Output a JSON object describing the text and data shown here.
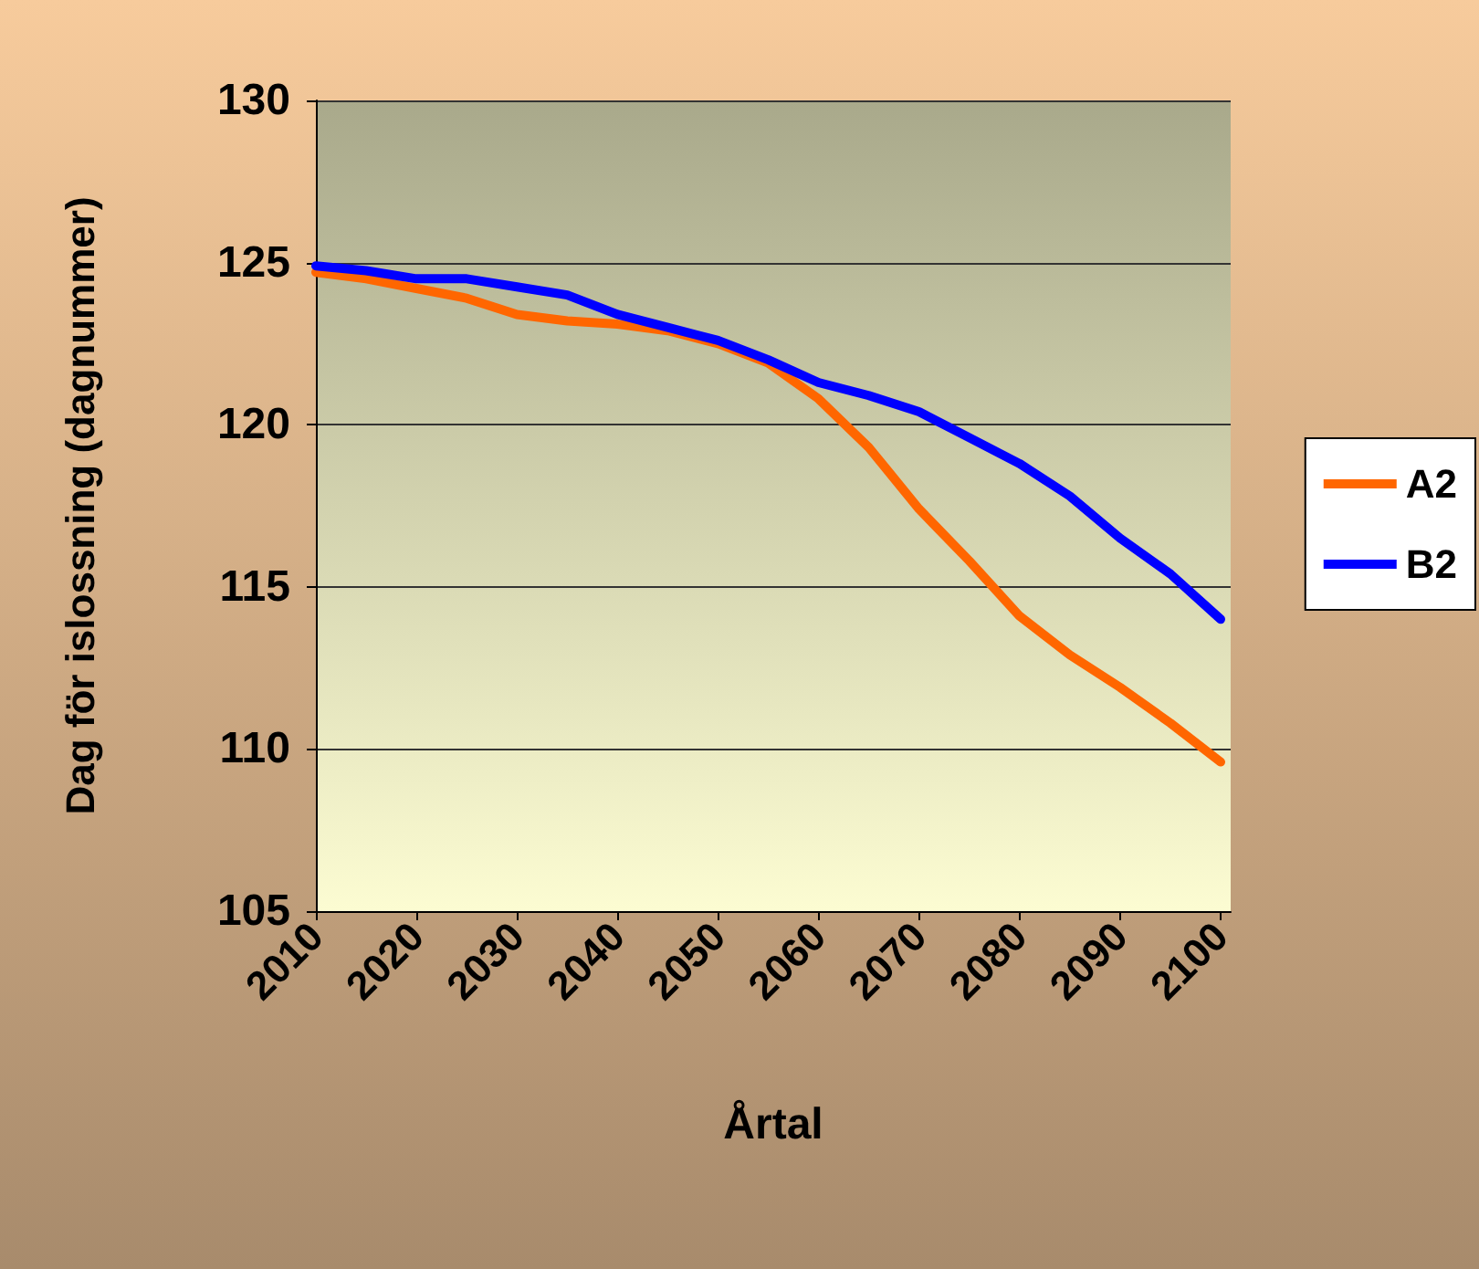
{
  "chart_data": {
    "type": "line",
    "xlabel": "Årtal",
    "ylabel": "Dag för islossning (dagnummer)",
    "x": [
      2010,
      2015,
      2020,
      2025,
      2030,
      2035,
      2040,
      2045,
      2050,
      2055,
      2060,
      2065,
      2070,
      2075,
      2080,
      2085,
      2090,
      2095,
      2100
    ],
    "series": [
      {
        "name": "A2",
        "color": "#ff6600",
        "values": [
          124.7,
          124.5,
          124.2,
          123.9,
          123.4,
          123.2,
          123.1,
          122.9,
          122.5,
          121.9,
          120.8,
          119.3,
          117.4,
          115.8,
          114.1,
          112.9,
          111.9,
          110.8,
          109.6
        ]
      },
      {
        "name": "B2",
        "color": "#0000ff",
        "values": [
          124.9,
          124.75,
          124.5,
          124.5,
          124.25,
          124.0,
          123.4,
          123.0,
          122.6,
          122.0,
          121.3,
          120.9,
          120.4,
          119.6,
          118.8,
          117.8,
          116.5,
          115.4,
          114.0
        ]
      }
    ],
    "xlim": [
      2010,
      2101
    ],
    "xticks": [
      2010,
      2020,
      2030,
      2040,
      2050,
      2060,
      2070,
      2080,
      2090,
      2100
    ],
    "ylim": [
      105,
      130
    ],
    "yticks": [
      105,
      110,
      115,
      120,
      125,
      130
    ],
    "grid": "y",
    "legend": "right",
    "marker": "none",
    "line_style": "solid"
  }
}
